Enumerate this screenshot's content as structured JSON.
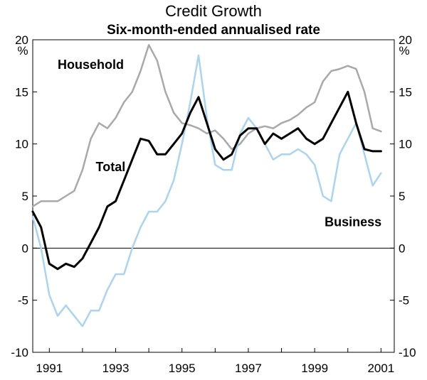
{
  "chart_data": {
    "type": "line",
    "title": "Credit Growth",
    "subtitle": "Six-month-ended annualised rate",
    "unit_left": "%",
    "unit_right": "%",
    "xlim": [
      1990.5,
      2001.4
    ],
    "ylim": [
      -10,
      20
    ],
    "x_ticks": [
      1991,
      1993,
      1995,
      1997,
      1999,
      2001
    ],
    "x_tick_labels": [
      "1991",
      "1993",
      "1995",
      "1997",
      "1999",
      "2001"
    ],
    "y_ticks": [
      20,
      15,
      10,
      5,
      0,
      -5,
      -10
    ],
    "y_tick_labels": [
      "20",
      "15",
      "10",
      "5",
      "0",
      "-5",
      "-10"
    ],
    "grid": false,
    "series": [
      {
        "name": "Household",
        "label": "Household",
        "color": "#a7a9ab",
        "x": [
          1990.5,
          1990.75,
          1991.0,
          1991.25,
          1991.5,
          1991.75,
          1992.0,
          1992.25,
          1992.5,
          1992.75,
          1993.0,
          1993.25,
          1993.5,
          1993.75,
          1994.0,
          1994.25,
          1994.5,
          1994.75,
          1995.0,
          1995.25,
          1995.5,
          1995.75,
          1996.0,
          1996.25,
          1996.5,
          1996.75,
          1997.0,
          1997.25,
          1997.5,
          1997.75,
          1998.0,
          1998.25,
          1998.5,
          1998.75,
          1999.0,
          1999.25,
          1999.5,
          1999.75,
          2000.0,
          2000.25,
          2000.5,
          2000.75,
          2001.0
        ],
        "values": [
          4,
          4.5,
          4.5,
          4.5,
          5,
          5.5,
          7.5,
          10.5,
          12,
          11.5,
          12.5,
          14,
          15,
          17,
          19.5,
          18,
          15,
          13,
          12,
          11.8,
          11.5,
          11,
          11.3,
          10.5,
          9.5,
          10,
          11,
          11.5,
          11.7,
          11.5,
          12,
          12.3,
          12.8,
          13.5,
          14,
          16,
          17,
          17.2,
          17.5,
          17.2,
          15,
          11.5,
          11.2
        ]
      },
      {
        "name": "Total",
        "label": "Total",
        "color": "#000000",
        "x": [
          1990.5,
          1990.75,
          1991.0,
          1991.25,
          1991.5,
          1991.75,
          1992.0,
          1992.25,
          1992.5,
          1992.75,
          1993.0,
          1993.25,
          1993.5,
          1993.75,
          1994.0,
          1994.25,
          1994.5,
          1994.75,
          1995.0,
          1995.25,
          1995.5,
          1995.75,
          1996.0,
          1996.25,
          1996.5,
          1996.75,
          1997.0,
          1997.25,
          1997.5,
          1997.75,
          1998.0,
          1998.25,
          1998.5,
          1998.75,
          1999.0,
          1999.25,
          1999.5,
          1999.75,
          2000.0,
          2000.25,
          2000.5,
          2000.75,
          2001.0
        ],
        "values": [
          3.5,
          2,
          -1.5,
          -2,
          -1.5,
          -1.8,
          -1,
          0.5,
          2,
          4,
          4.5,
          6.5,
          8.5,
          10.5,
          10.3,
          9,
          9,
          10,
          11,
          13,
          14.5,
          12,
          9.5,
          8.5,
          9,
          10.8,
          11.5,
          11.5,
          10,
          11,
          10.5,
          11,
          11.5,
          10.5,
          10,
          10.5,
          12,
          13.5,
          15,
          12,
          9.5,
          9.3,
          9.3
        ]
      },
      {
        "name": "Business",
        "label": "Business",
        "color": "#a9d4f2",
        "x": [
          1990.5,
          1990.75,
          1991.0,
          1991.25,
          1991.5,
          1991.75,
          1992.0,
          1992.25,
          1992.5,
          1992.75,
          1993.0,
          1993.25,
          1993.5,
          1993.75,
          1994.0,
          1994.25,
          1994.5,
          1994.75,
          1995.0,
          1995.25,
          1995.5,
          1995.75,
          1996.0,
          1996.25,
          1996.5,
          1996.75,
          1997.0,
          1997.25,
          1997.5,
          1997.75,
          1998.0,
          1998.25,
          1998.5,
          1998.75,
          1999.0,
          1999.25,
          1999.5,
          1999.75,
          2000.0,
          2000.25,
          2000.5,
          2000.75,
          2001.0
        ],
        "values": [
          3,
          0,
          -4.5,
          -6.5,
          -5.5,
          -6.5,
          -7.5,
          -6,
          -6,
          -4,
          -2.5,
          -2.5,
          0,
          2,
          3.5,
          3.5,
          4.5,
          6.5,
          10,
          14,
          18.5,
          12.5,
          8,
          7.5,
          7.5,
          11,
          12.5,
          11.5,
          10,
          8.5,
          9,
          9,
          9.5,
          9,
          8,
          5,
          4.5,
          9,
          10.5,
          12,
          9,
          6,
          7.2
        ]
      }
    ],
    "annotations": [
      "Household",
      "Total",
      "Business"
    ],
    "legend": "inline labels"
  }
}
